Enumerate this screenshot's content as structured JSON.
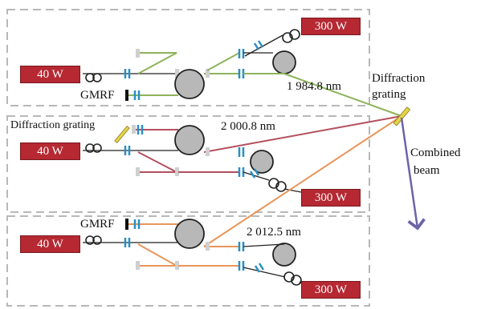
{
  "colors": {
    "green_path": "#8db35a",
    "red_path": "#b4505e",
    "orange_path": "#e8955a",
    "combined_beam": "#6b64a8",
    "laser_box": "#b62832",
    "coupler_blue": "#2a8fc4",
    "panel_border": "#b8b8b8",
    "spool_gray": "#b8b8b8"
  },
  "modules": [
    {
      "seed_power": "40 W",
      "amp_power": "300 W",
      "wavelength": "1 984.8 nm",
      "filter_label": "GMRF"
    },
    {
      "seed_power": "40 W",
      "amp_power": "300 W",
      "wavelength": "2 000.8 nm",
      "filter_label": "Diffraction grating"
    },
    {
      "seed_power": "40 W",
      "amp_power": "300 W",
      "wavelength": "2 012.5 nm",
      "filter_label": "GMRF"
    }
  ],
  "combiner": {
    "label_line1": "Diffraction",
    "label_line2": "grating"
  },
  "output": {
    "label_line1": "Combined",
    "label_line2": "beam"
  }
}
